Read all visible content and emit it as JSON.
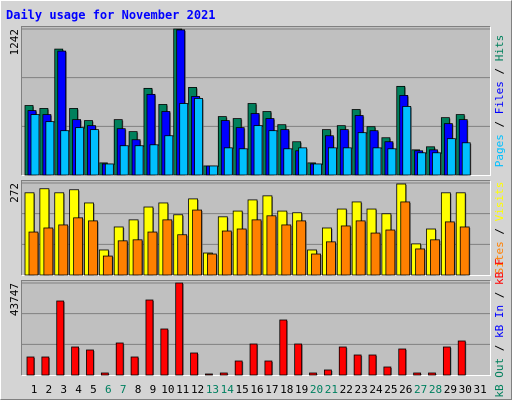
{
  "chart_data": [
    {
      "type": "bar",
      "title": "Daily usage for November 2021",
      "ylim": [
        0,
        1242
      ],
      "yticks": [
        1242
      ],
      "grid_divisions": 3,
      "legend_separator": " / ",
      "series": [
        {
          "name": "Hits",
          "color": "#00805c",
          "values": [
            591,
            566,
            1071,
            566,
            463,
            103,
            471,
            369,
            737,
            600,
            1242,
            745,
            77,
            497,
            480,
            608,
            540,
            428,
            283,
            103,
            386,
            420,
            557,
            411,
            317,
            754,
            214,
            240,
            488,
            514,
            null
          ]
        },
        {
          "name": "Files",
          "color": "#0000ff",
          "values": [
            548,
            514,
            1054,
            471,
            420,
            94,
            394,
            300,
            686,
            540,
            1234,
            668,
            77,
            463,
            403,
            523,
            480,
            386,
            206,
            94,
            334,
            386,
            506,
            377,
            283,
            677,
            206,
            214,
            437,
            471,
            null
          ]
        },
        {
          "name": "Pages",
          "color": "#00c0ff",
          "values": [
            514,
            454,
            377,
            403,
            386,
            94,
            249,
            249,
            257,
            334,
            608,
            651,
            77,
            231,
            223,
            420,
            377,
            223,
            231,
            94,
            231,
            231,
            360,
            231,
            223,
            583,
            189,
            189,
            309,
            274,
            null
          ]
        }
      ]
    },
    {
      "type": "bar",
      "ylim": [
        0,
        272
      ],
      "yticks": [
        272
      ],
      "grid_divisions": 3,
      "legend_separator": " / ",
      "series": [
        {
          "name": "Visits",
          "color": "#ffff00",
          "values": [
            243,
            255,
            243,
            252,
            213,
            74,
            142,
            163,
            201,
            213,
            178,
            225,
            65,
            172,
            189,
            222,
            234,
            189,
            184,
            74,
            139,
            195,
            216,
            195,
            181,
            269,
            92,
            136,
            243,
            243,
            null
          ]
        },
        {
          "name": "Sites",
          "color": "#ff8000",
          "values": [
            127,
            139,
            148,
            169,
            160,
            56,
            101,
            104,
            127,
            163,
            119,
            192,
            62,
            130,
            136,
            163,
            175,
            148,
            160,
            62,
            98,
            145,
            160,
            124,
            133,
            216,
            77,
            104,
            157,
            142,
            null
          ]
        }
      ]
    },
    {
      "type": "bar",
      "ylim": [
        0,
        43747
      ],
      "yticks": [
        43747
      ],
      "grid_divisions": 3,
      "legend_separator": " / ",
      "categories": [
        "1",
        "2",
        "3",
        "4",
        "5",
        "6",
        "7",
        "8",
        "9",
        "10",
        "11",
        "12",
        "13",
        "14",
        "15",
        "16",
        "17",
        "18",
        "19",
        "20",
        "21",
        "22",
        "23",
        "24",
        "25",
        "26",
        "27",
        "28",
        "29",
        "30",
        "31"
      ],
      "weekend_indices": [
        5,
        6,
        12,
        13,
        19,
        20,
        26,
        27
      ],
      "weekend_color": "#008060",
      "series": [
        {
          "name": "kB F",
          "color": "#ff0000",
          "values": [
            8559,
            8559,
            35187,
            13314,
            11888,
            951,
            15216,
            8559,
            35662,
            21873,
            43747,
            10461,
            476,
            951,
            6657,
            14741,
            6657,
            26153,
            14741,
            951,
            2378,
            13314,
            9510,
            9510,
            3804,
            12363,
            951,
            951,
            13314,
            16167,
            null
          ]
        },
        {
          "name": "kB In",
          "color": "#0000ff",
          "values": [
            null,
            null,
            null,
            null,
            null,
            null,
            null,
            null,
            null,
            null,
            null,
            null,
            null,
            null,
            null,
            null,
            null,
            null,
            null,
            null,
            null,
            null,
            null,
            null,
            null,
            null,
            null,
            null,
            null,
            null,
            null
          ]
        },
        {
          "name": "kB Out",
          "color": "#00805c",
          "values": [
            null,
            null,
            null,
            null,
            null,
            null,
            null,
            null,
            null,
            null,
            null,
            null,
            null,
            null,
            null,
            null,
            null,
            null,
            null,
            null,
            null,
            null,
            null,
            null,
            null,
            null,
            null,
            null,
            null,
            null,
            null
          ]
        }
      ]
    }
  ]
}
